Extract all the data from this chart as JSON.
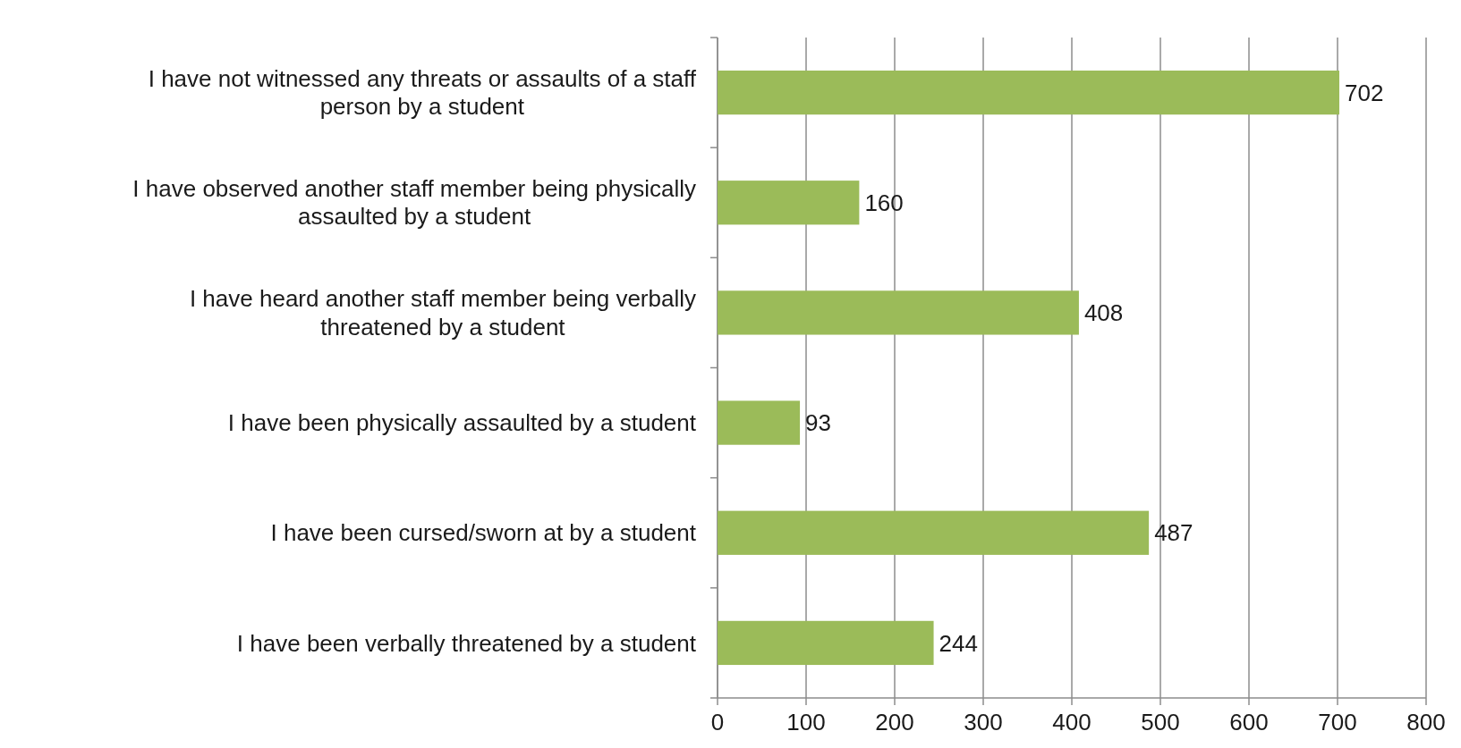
{
  "chart_data": {
    "type": "bar",
    "orientation": "horizontal",
    "categories": [
      "I have not witnessed any threats or assaults of a staff person by a student",
      "I have observed another staff member being physically assaulted by a student",
      "I have heard another staff member being verbally threatened by a student",
      "I have been physically assaulted by a student",
      "I have been cursed/sworn at by a student",
      "I have been verbally threatened by a student"
    ],
    "values": [
      702,
      160,
      408,
      93,
      487,
      244
    ],
    "color": "#9bbb59",
    "xlim": [
      0,
      800
    ],
    "xticks": [
      0,
      100,
      200,
      300,
      400,
      500,
      600,
      700,
      800
    ],
    "grid": "x",
    "data_labels": true
  }
}
